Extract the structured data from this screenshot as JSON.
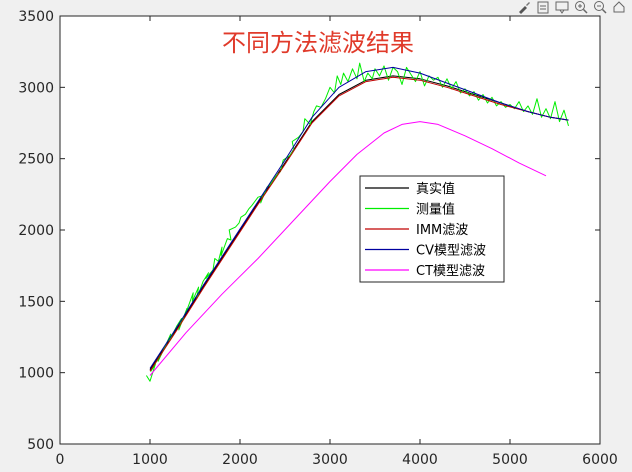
{
  "toolbar": {
    "icons": [
      "brush-icon",
      "export-icon",
      "datatip-icon",
      "zoom-in-icon",
      "zoom-out-icon",
      "home-icon"
    ]
  },
  "chart_data": {
    "type": "line",
    "title": "不同方法滤波结果",
    "xlabel": "",
    "ylabel": "",
    "xlim": [
      0,
      6000
    ],
    "ylim": [
      500,
      3500
    ],
    "xticks": [
      0,
      1000,
      2000,
      3000,
      4000,
      5000,
      6000
    ],
    "yticks": [
      500,
      1000,
      1500,
      2000,
      2500,
      3000,
      3500
    ],
    "grid": false,
    "legend_position": "center-right",
    "series": [
      {
        "name": "真实值",
        "color": "#000000",
        "x": [
          1000,
          1300,
          1600,
          1900,
          2200,
          2500,
          2800,
          3100,
          3400,
          3700,
          4000,
          4300,
          4600,
          4900,
          5200,
          5450,
          5650
        ],
        "y": [
          1020,
          1310,
          1610,
          1900,
          2190,
          2470,
          2760,
          2950,
          3050,
          3080,
          3060,
          3010,
          2950,
          2890,
          2830,
          2790,
          2770
        ]
      },
      {
        "name": "测量值",
        "color": "#00ee00",
        "x": [
          960,
          1000,
          1060,
          1010,
          1110,
          1090,
          1180,
          1230,
          1210,
          1300,
          1350,
          1320,
          1410,
          1400,
          1480,
          1470,
          1540,
          1520,
          1590,
          1650,
          1620,
          1700,
          1720,
          1760,
          1800,
          1790,
          1860,
          1900,
          1880,
          1950,
          1990,
          2010,
          2060,
          2100,
          2130,
          2200,
          2250,
          2230,
          2300,
          2350,
          2330,
          2400,
          2450,
          2480,
          2550,
          2600,
          2580,
          2650,
          2700,
          2720,
          2780,
          2820,
          2850,
          2900,
          2950,
          3000,
          3050,
          3080,
          3120,
          3150,
          3200,
          3250,
          3300,
          3330,
          3380,
          3420,
          3470,
          3500,
          3550,
          3600,
          3650,
          3700,
          3750,
          3800,
          3850,
          3900,
          3950,
          4000,
          4050,
          4100,
          4150,
          4200,
          4250,
          4300,
          4350,
          4400,
          4450,
          4500,
          4550,
          4600,
          4650,
          4700,
          4750,
          4800,
          4850,
          4900,
          4950,
          5000,
          5050,
          5100,
          5150,
          5200,
          5250,
          5300,
          5350,
          5400,
          5450,
          5500,
          5550,
          5600,
          5650
        ],
        "y": [
          980,
          940,
          1060,
          1010,
          1120,
          1080,
          1200,
          1270,
          1220,
          1330,
          1380,
          1300,
          1450,
          1420,
          1560,
          1500,
          1600,
          1520,
          1640,
          1700,
          1660,
          1720,
          1800,
          1780,
          1880,
          1820,
          1940,
          1930,
          2000,
          2020,
          2050,
          2090,
          2110,
          2150,
          2170,
          2230,
          2240,
          2190,
          2300,
          2330,
          2310,
          2380,
          2410,
          2490,
          2520,
          2560,
          2620,
          2650,
          2690,
          2780,
          2740,
          2830,
          2870,
          2860,
          2920,
          3000,
          2960,
          3080,
          3020,
          3100,
          3040,
          3130,
          3060,
          3170,
          3040,
          3100,
          3060,
          3130,
          3080,
          3150,
          3050,
          3140,
          3110,
          3020,
          3140,
          3090,
          3040,
          3110,
          3010,
          3080,
          3050,
          3070,
          3000,
          3060,
          2990,
          3040,
          2960,
          2990,
          2940,
          2970,
          2910,
          2950,
          2890,
          2930,
          2870,
          2900,
          2860,
          2880,
          2850,
          2900,
          2830,
          2870,
          2810,
          2920,
          2790,
          2850,
          2780,
          2900,
          2760,
          2840,
          2730
        ]
      },
      {
        "name": "IMM滤波",
        "color": "#c00000",
        "x": [
          1000,
          1300,
          1600,
          1900,
          2200,
          2500,
          2800,
          3100,
          3400,
          3700,
          4000,
          4300,
          4600,
          4900,
          5200,
          5450,
          5650
        ],
        "y": [
          1010,
          1300,
          1600,
          1890,
          2180,
          2460,
          2750,
          2940,
          3040,
          3070,
          3050,
          3000,
          2940,
          2880,
          2830,
          2790,
          2770
        ]
      },
      {
        "name": "CV模型滤波",
        "color": "#0000a0",
        "x": [
          1000,
          1300,
          1600,
          1900,
          2200,
          2500,
          2800,
          3100,
          3400,
          3700,
          4000,
          4300,
          4600,
          4900,
          5200,
          5450,
          5650
        ],
        "y": [
          1030,
          1320,
          1620,
          1910,
          2200,
          2490,
          2790,
          3000,
          3110,
          3140,
          3100,
          3030,
          2960,
          2890,
          2830,
          2790,
          2770
        ]
      },
      {
        "name": "CT模型滤波",
        "color": "#ff00ff",
        "x": [
          1000,
          1400,
          1800,
          2200,
          2600,
          3000,
          3300,
          3600,
          3800,
          4000,
          4200,
          4500,
          4800,
          5100,
          5400
        ],
        "y": [
          980,
          1280,
          1550,
          1800,
          2070,
          2340,
          2530,
          2680,
          2740,
          2760,
          2740,
          2660,
          2570,
          2470,
          2380
        ]
      }
    ]
  }
}
